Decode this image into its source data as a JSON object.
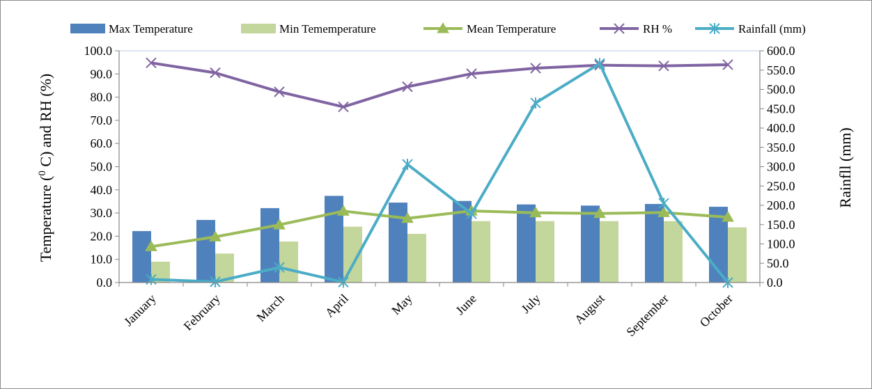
{
  "chart_data": {
    "type": "bar",
    "categories": [
      "January",
      "February",
      "March",
      "April",
      "May",
      "June",
      "July",
      "August",
      "September",
      "October"
    ],
    "series": [
      {
        "name": "Max Temperature",
        "type": "bar",
        "axis": "left",
        "color": "#4f81bd",
        "values": [
          22.2,
          27.0,
          32.1,
          37.4,
          34.5,
          35.2,
          33.7,
          33.2,
          33.9,
          32.7
        ]
      },
      {
        "name": "Min Tememperature",
        "type": "bar",
        "axis": "left",
        "color": "#c3d69b",
        "values": [
          9.0,
          12.5,
          17.7,
          24.1,
          21.0,
          26.5,
          26.5,
          26.5,
          26.5,
          23.8
        ]
      },
      {
        "name": "Mean Temperature",
        "type": "line",
        "marker": "triangle",
        "axis": "left",
        "color": "#9bbb59",
        "values": [
          15.5,
          19.7,
          24.9,
          30.8,
          27.7,
          30.9,
          30.1,
          29.8,
          30.2,
          28.2
        ]
      },
      {
        "name": "RH %",
        "type": "line",
        "marker": "x",
        "axis": "left",
        "color": "#8064a2",
        "values": [
          94.8,
          90.5,
          82.3,
          75.8,
          84.5,
          90.1,
          92.5,
          93.8,
          93.5,
          94.0
        ]
      },
      {
        "name": "Rainfall (mm)",
        "type": "line",
        "marker": "star",
        "axis": "right",
        "color": "#4bacc6",
        "values": [
          8.0,
          2.0,
          39.0,
          1.0,
          306.0,
          178.0,
          465.0,
          567.0,
          205.0,
          0.0
        ]
      }
    ],
    "ylabel": "Temperature (0 C) and RH (%)",
    "ylabel_parts": {
      "before": "Temperature (",
      "superscript": "0",
      "after": " C) and RH (%)"
    },
    "y2label": "Rainfll (mm)",
    "xlabel": "",
    "title": "",
    "ylim": [
      0,
      100
    ],
    "y2lim": [
      0,
      600
    ],
    "yticks": [
      "0.0",
      "10.0",
      "20.0",
      "30.0",
      "40.0",
      "50.0",
      "60.0",
      "70.0",
      "80.0",
      "90.0",
      "100.0"
    ],
    "y2ticks": [
      "0.0",
      "50.0",
      "100.0",
      "150.0",
      "200.0",
      "250.0",
      "300.0",
      "350.0",
      "400.0",
      "450.0",
      "500.0",
      "550.0",
      "600.0"
    ],
    "grid": false,
    "legend_position": "top"
  }
}
